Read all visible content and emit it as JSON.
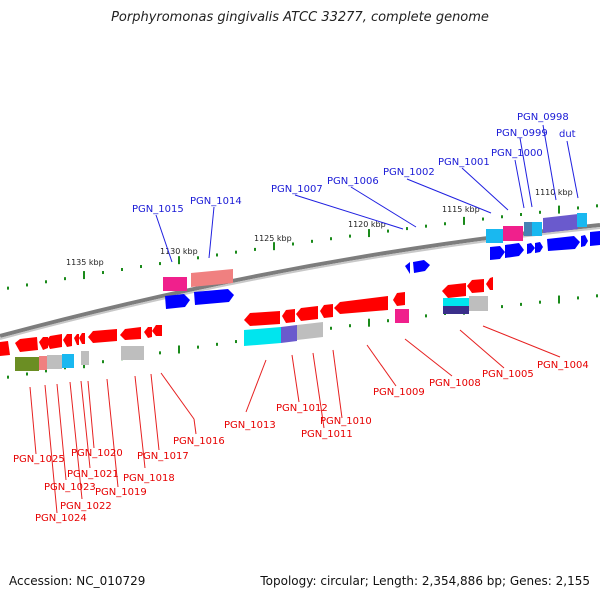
{
  "title": "Porphyromonas gingivalis ATCC 33277, complete genome",
  "footer": {
    "accession": "Accession: NC_010729",
    "topology": "Topology: circular; Length: 2,354,886 bp; Genes: 2,155"
  },
  "colors": {
    "forward_gene": "#0000ff",
    "reverse_gene": "#ff0000",
    "forward_label": "#1a1ad6",
    "reverse_label": "#e60000",
    "tick": "#1a8a1a",
    "backbone": "#8a8a8a"
  },
  "kbp_marks": [
    "1135 kbp",
    "1130 kbp",
    "1125 kbp",
    "1120 kbp",
    "1115 kbp",
    "1110 kbp"
  ],
  "forward_labels": [
    "PGN_1015",
    "PGN_1014",
    "PGN_1007",
    "PGN_1006",
    "PGN_1002",
    "PGN_1001",
    "PGN_1000",
    "PGN_0999",
    "PGN_0998",
    "dut"
  ],
  "reverse_labels": [
    "PGN_1025",
    "PGN_1024",
    "PGN_1023",
    "PGN_1022",
    "PGN_1021",
    "PGN_1020",
    "PGN_1019",
    "PGN_1018",
    "PGN_1017",
    "PGN_1016",
    "PGN_1013",
    "PGN_1012",
    "PGN_1011",
    "PGN_1010",
    "PGN_1009",
    "PGN_1008",
    "PGN_1005",
    "PGN_1004"
  ],
  "feature_colors": {
    "cyan": "#00e5ee",
    "sky": "#19b8f0",
    "magenta": "#f0208c",
    "salmon": "#f08080",
    "purple": "#6a5acd",
    "steel": "#4682b4",
    "olive": "#6b8e23",
    "grey": "#bebebe",
    "navy": "#3a2f8a"
  }
}
